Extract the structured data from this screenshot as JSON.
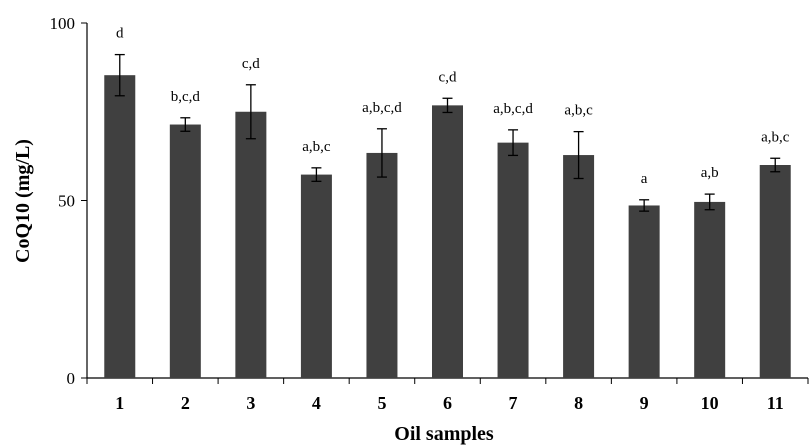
{
  "chart_data": {
    "type": "bar",
    "title": "",
    "xlabel": "Oil samples",
    "ylabel": "CoQ10 (mg/L)",
    "ylim": [
      0,
      100
    ],
    "yticks": [
      0,
      50,
      100
    ],
    "grid": false,
    "categories": [
      "1",
      "2",
      "3",
      "4",
      "5",
      "6",
      "7",
      "8",
      "9",
      "10",
      "11"
    ],
    "values": [
      85.3,
      71.4,
      75.0,
      57.3,
      63.4,
      76.8,
      66.3,
      62.8,
      48.6,
      49.6,
      60.0
    ],
    "errors": [
      5.8,
      1.9,
      7.6,
      1.9,
      6.8,
      2.0,
      3.6,
      6.6,
      1.6,
      2.2,
      1.9
    ],
    "significance_labels": [
      "d",
      "b,c,d",
      "c,d",
      "a,b,c",
      "a,b,c,d",
      "c,d",
      "a,b,c,d",
      "a,b,c",
      "a",
      "a,b",
      "a,b,c"
    ],
    "colors": {
      "bar": "#404040",
      "axis": "#000000",
      "text": "#000000"
    }
  }
}
